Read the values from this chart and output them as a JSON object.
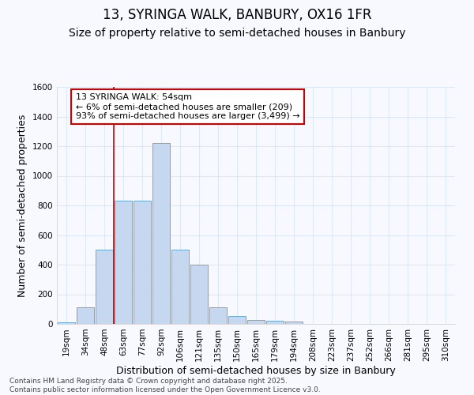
{
  "title": "13, SYRINGA WALK, BANBURY, OX16 1FR",
  "subtitle": "Size of property relative to semi-detached houses in Banbury",
  "xlabel": "Distribution of semi-detached houses by size in Banbury",
  "ylabel": "Number of semi-detached properties",
  "bin_labels": [
    "19sqm",
    "34sqm",
    "48sqm",
    "63sqm",
    "77sqm",
    "92sqm",
    "106sqm",
    "121sqm",
    "135sqm",
    "150sqm",
    "165sqm",
    "179sqm",
    "194sqm",
    "208sqm",
    "223sqm",
    "237sqm",
    "252sqm",
    "266sqm",
    "281sqm",
    "295sqm",
    "310sqm"
  ],
  "bar_values": [
    10,
    110,
    500,
    830,
    830,
    1220,
    500,
    400,
    110,
    55,
    25,
    20,
    15,
    0,
    0,
    0,
    0,
    0,
    0,
    0,
    0
  ],
  "bar_color": "#c5d8f0",
  "bar_edgecolor": "#6aaad4",
  "vline_color": "#cc0000",
  "vline_pos": 2.5,
  "annotation_text": "13 SYRINGA WALK: 54sqm\n← 6% of semi-detached houses are smaller (209)\n93% of semi-detached houses are larger (3,499) →",
  "annotation_box_facecolor": "#ffffff",
  "annotation_box_edgecolor": "#cc0000",
  "ylim": [
    0,
    1600
  ],
  "yticks": [
    0,
    200,
    400,
    600,
    800,
    1000,
    1200,
    1400,
    1600
  ],
  "bg_color": "#f7f9ff",
  "grid_color": "#dde8f5",
  "title_fontsize": 12,
  "subtitle_fontsize": 10,
  "axis_label_fontsize": 9,
  "tick_fontsize": 7.5,
  "annotation_fontsize": 8,
  "footer_fontsize": 6.5,
  "footer_text": "Contains HM Land Registry data © Crown copyright and database right 2025.\nContains public sector information licensed under the Open Government Licence v3.0."
}
